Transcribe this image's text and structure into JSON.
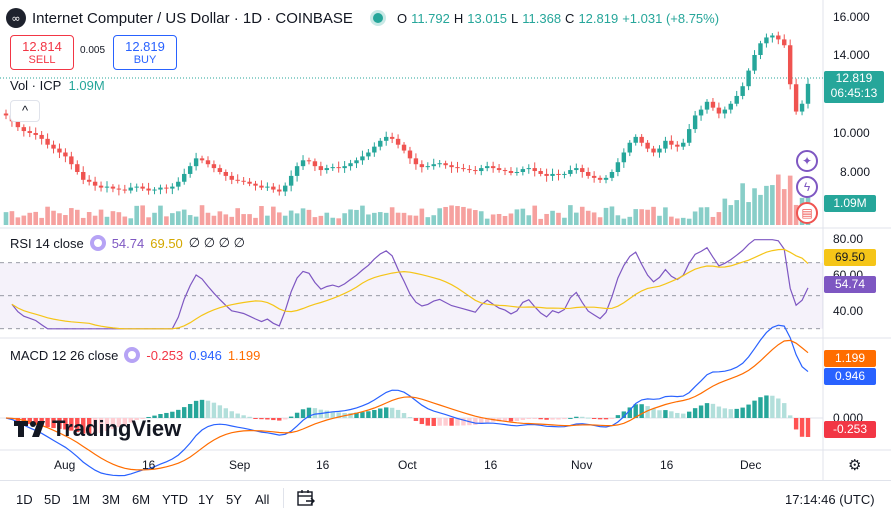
{
  "header": {
    "title": "Internet Computer / US Dollar · 1D · COINBASE",
    "ohlc": [
      {
        "k": "O",
        "v": "11.792"
      },
      {
        "k": "H",
        "v": "13.015"
      },
      {
        "k": "L",
        "v": "11.368"
      },
      {
        "k": "C",
        "v": "12.819"
      }
    ],
    "change": "+1.031 (+8.75%)",
    "logo_glyph": "∞"
  },
  "trade": {
    "sell_price": "12.814",
    "sell_label": "SELL",
    "buy_price": "12.819",
    "buy_label": "BUY",
    "spread": "0.005"
  },
  "volume": {
    "label": "Vol · ICP",
    "value": "1.09M",
    "tag": "1.09M",
    "collapse_glyph": "^"
  },
  "price_axis": {
    "ticks": [
      "16.000",
      "14.000",
      "10.000",
      "8.000"
    ],
    "last_price": "12.819",
    "countdown": "06:45:13"
  },
  "rsi": {
    "label": "RSI 14 close",
    "value": "54.74",
    "ma": "69.50",
    "extras": "∅ ∅ ∅ ∅",
    "ticks": [
      "80.00",
      "60.00",
      "40.00"
    ],
    "tag_ma": "69.50",
    "tag_value": "54.74"
  },
  "macd": {
    "label": "MACD 12 26 close",
    "hist": "-0.253",
    "macd": "0.946",
    "signal": "1.199",
    "zero_tick": "0.000",
    "tag_signal": "1.199",
    "tag_macd": "0.946",
    "tag_hist": "-0.253"
  },
  "time_axis": {
    "labels": [
      "Aug",
      "16",
      "Sep",
      "16",
      "Oct",
      "16",
      "Nov",
      "16",
      "Dec"
    ]
  },
  "bottom": {
    "ranges": [
      "1D",
      "5D",
      "1M",
      "3M",
      "6M",
      "YTD",
      "1Y",
      "5Y",
      "All"
    ],
    "clock": "17:14:46 (UTC)"
  },
  "branding": {
    "name": "TradingView"
  },
  "colors": {
    "up": "#26a69a",
    "down": "#ef5350",
    "rsi": "#7e57c2",
    "rsi_ma": "#f5c518",
    "macd": "#2962ff",
    "signal": "#ff6d00"
  },
  "chart_data": {
    "type": "candlestick",
    "symbol": "ICP/USD",
    "interval": "1D",
    "ylim": [
      7.2,
      16.3
    ],
    "closes": [
      11.2,
      10.9,
      10.6,
      10.4,
      10.3,
      10.2,
      10.0,
      9.7,
      9.5,
      9.3,
      9.1,
      8.7,
      8.3,
      7.9,
      7.8,
      7.6,
      7.5,
      7.55,
      7.45,
      7.4,
      7.35,
      7.5,
      7.55,
      7.45,
      7.35,
      7.4,
      7.5,
      7.45,
      7.55,
      7.8,
      8.2,
      8.6,
      9.0,
      8.9,
      8.7,
      8.5,
      8.3,
      8.1,
      7.9,
      7.85,
      7.8,
      7.7,
      7.6,
      7.5,
      7.55,
      7.4,
      7.3,
      7.6,
      8.1,
      8.6,
      8.9,
      8.85,
      8.6,
      8.4,
      8.5,
      8.55,
      8.5,
      8.6,
      8.75,
      8.9,
      9.1,
      9.3,
      9.6,
      9.9,
      10.1,
      10.0,
      9.7,
      9.4,
      9.0,
      8.7,
      8.55,
      8.6,
      8.7,
      8.75,
      8.65,
      8.55,
      8.5,
      8.45,
      8.4,
      8.35,
      8.5,
      8.6,
      8.5,
      8.4,
      8.35,
      8.25,
      8.3,
      8.45,
      8.5,
      8.35,
      8.2,
      8.1,
      8.2,
      8.15,
      8.2,
      8.4,
      8.5,
      8.3,
      8.1,
      8.0,
      7.9,
      8.0,
      8.3,
      8.8,
      9.3,
      9.8,
      10.1,
      9.8,
      9.5,
      9.3,
      9.5,
      9.9,
      9.7,
      9.6,
      9.8,
      10.5,
      11.2,
      11.5,
      11.9,
      11.6,
      11.3,
      11.5,
      11.8,
      12.2,
      12.7,
      13.5,
      14.3,
      14.9,
      15.2,
      15.3,
      15.1,
      14.8,
      12.8,
      11.4,
      11.8,
      12.82
    ],
    "rsi": {
      "ylim": [
        30,
        85
      ],
      "last": 54.74,
      "ma_last": 69.5,
      "bands": [
        70,
        50,
        30
      ]
    },
    "macd": {
      "last_macd": 0.946,
      "last_signal": 1.199,
      "last_hist": -0.253
    }
  }
}
